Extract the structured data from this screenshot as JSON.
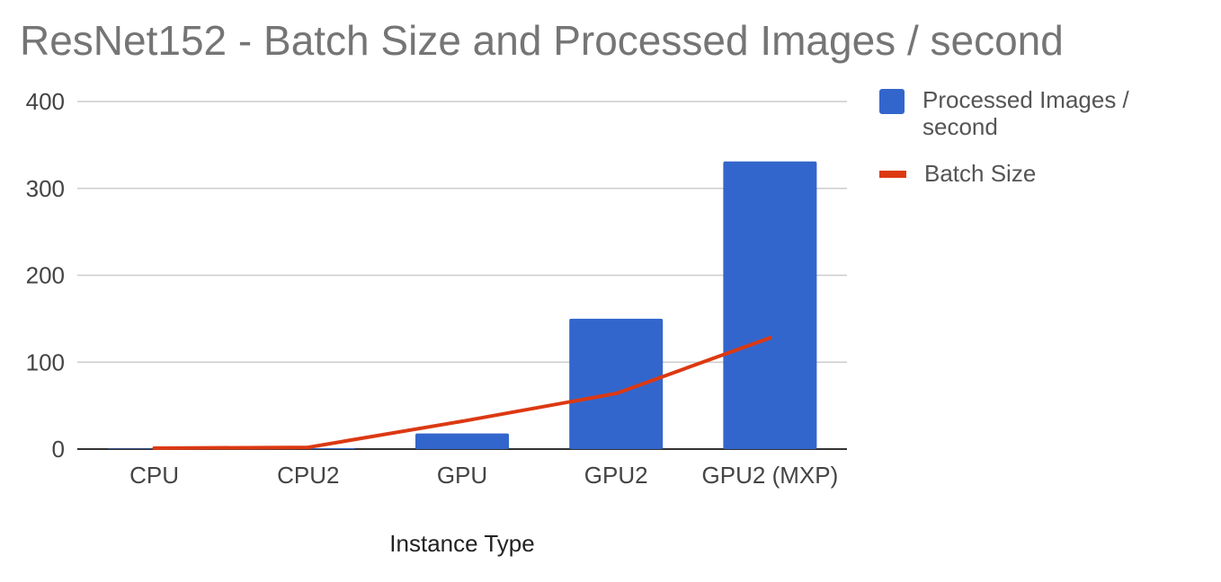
{
  "chart_data": {
    "type": "bar",
    "title": "ResNet152 - Batch Size and Processed Images / second",
    "xlabel": "Instance Type",
    "ylabel": "",
    "ylim": [
      0,
      400
    ],
    "yticks": [
      "400",
      "300",
      "200",
      "100",
      "0"
    ],
    "categories": [
      "CPU",
      "CPU2",
      "GPU",
      "GPU2",
      "GPU2 (MXP)"
    ],
    "grid": true,
    "legend_position": "right",
    "series": [
      {
        "name": "Processed Images / second",
        "type": "bar",
        "color": "#3366cc",
        "values": [
          0.5,
          1,
          18,
          150,
          331
        ]
      },
      {
        "name": "Batch Size",
        "type": "line",
        "color": "#dc3912",
        "values": [
          1,
          2,
          32,
          64,
          128
        ]
      }
    ]
  }
}
